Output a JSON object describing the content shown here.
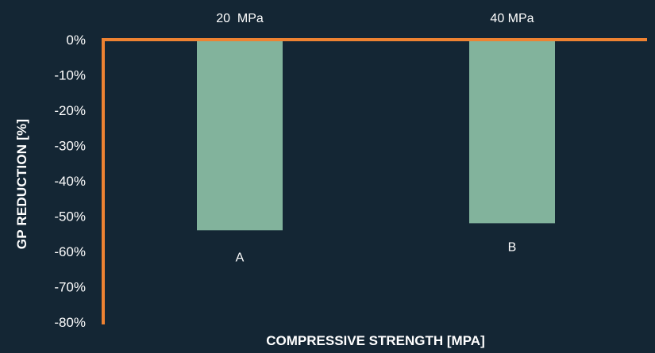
{
  "chart_data": {
    "type": "bar",
    "categories": [
      "20  MPa",
      "40 MPa"
    ],
    "values": [
      -54,
      -52
    ],
    "data_labels": [
      "A",
      "B"
    ],
    "xlabel": "COMPRESSIVE STRENGTH [MPA]",
    "ylabel": "GP REDUCTION [%]",
    "ylim": [
      -80,
      0
    ],
    "yticks": [
      0,
      -10,
      -20,
      -30,
      -40,
      -50,
      -60,
      -70,
      -80
    ],
    "ytick_labels": [
      "0%",
      "-10%",
      "-20%",
      "-30%",
      "-40%",
      "-50%",
      "-60%",
      "-70%",
      "-80%"
    ],
    "category_axis_position": "top",
    "grid": false,
    "legend": "none",
    "colors": {
      "background": "#142634",
      "bar": "#82b39c",
      "axis": "#ee8232",
      "text": "#ffffff"
    }
  }
}
